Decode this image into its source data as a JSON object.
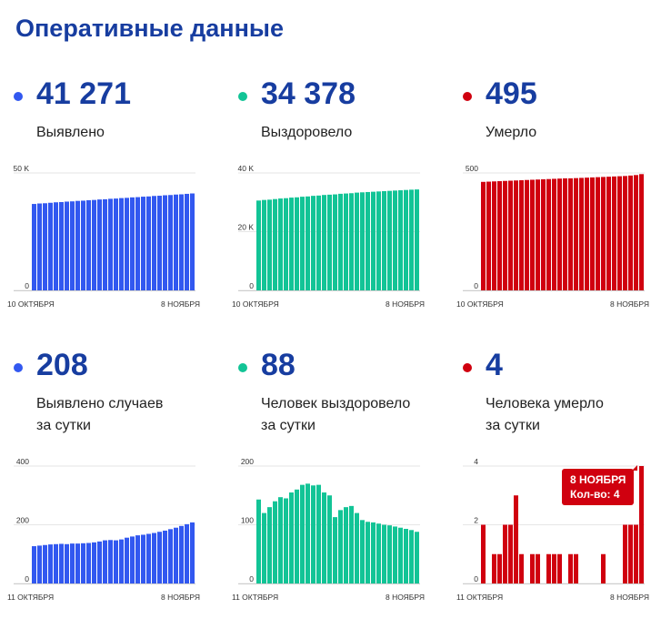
{
  "page": {
    "title": "Оперативные данные"
  },
  "panels": [
    {
      "value": "41 271",
      "label_lines": [
        "Выявлено"
      ],
      "color": "#3258f0"
    },
    {
      "value": "34 378",
      "label_lines": [
        "Выздоровело"
      ],
      "color": "#12c496"
    },
    {
      "value": "495",
      "label_lines": [
        "Умерло"
      ],
      "color": "#d0000f"
    },
    {
      "value": "208",
      "label_lines": [
        "Выявлено случаев",
        "за сутки"
      ],
      "color": "#3258f0"
    },
    {
      "value": "88",
      "label_lines": [
        "Человек выздоровело",
        "за сутки"
      ],
      "color": "#12c496"
    },
    {
      "value": "4",
      "label_lines": [
        "Человека умерло",
        "за сутки"
      ],
      "color": "#d0000f"
    }
  ],
  "chart_data": [
    {
      "type": "bar",
      "title": "Выявлено",
      "x_start_label": "10 ОКТЯБРЯ",
      "x_end_label": "8 НОЯБРЯ",
      "y_ticks": [
        {
          "value": 0,
          "label": "0"
        },
        {
          "value": 50000,
          "label": "50 K"
        }
      ],
      "ylim": [
        0,
        50000
      ],
      "values": [
        36800,
        37000,
        37100,
        37300,
        37500,
        37600,
        37800,
        37900,
        38100,
        38200,
        38400,
        38500,
        38700,
        38800,
        39000,
        39100,
        39300,
        39400,
        39600,
        39700,
        39900,
        40000,
        40200,
        40300,
        40500,
        40600,
        40800,
        40900,
        41100,
        41271
      ],
      "color": "#3258f0"
    },
    {
      "type": "bar",
      "title": "Выздоровело",
      "x_start_label": "10 ОКТЯБРЯ",
      "x_end_label": "8 НОЯБРЯ",
      "y_ticks": [
        {
          "value": 0,
          "label": "0"
        },
        {
          "value": 20000,
          "label": "20 K"
        },
        {
          "value": 40000,
          "label": "40 K"
        }
      ],
      "ylim": [
        0,
        40000
      ],
      "values": [
        30600,
        30800,
        30900,
        31100,
        31300,
        31400,
        31600,
        31700,
        31900,
        32000,
        32200,
        32300,
        32500,
        32600,
        32700,
        32900,
        33000,
        33100,
        33300,
        33400,
        33500,
        33600,
        33700,
        33800,
        33900,
        34000,
        34100,
        34200,
        34300,
        34378
      ],
      "color": "#12c496"
    },
    {
      "type": "bar",
      "title": "Умерло",
      "x_start_label": "10 ОКТЯБРЯ",
      "x_end_label": "8 НОЯБРЯ",
      "y_ticks": [
        {
          "value": 0,
          "label": "0"
        },
        {
          "value": 500,
          "label": "500"
        }
      ],
      "ylim": [
        0,
        500
      ],
      "values": [
        462,
        463,
        464,
        465,
        466,
        467,
        468,
        469,
        470,
        471,
        472,
        473,
        474,
        475,
        476,
        477,
        477,
        478,
        479,
        480,
        481,
        482,
        483,
        484,
        485,
        486,
        487,
        489,
        491,
        495
      ],
      "color": "#d0000f"
    },
    {
      "type": "bar",
      "title": "Выявлено случаев за сутки",
      "x_start_label": "11 ОКТЯБРЯ",
      "x_end_label": "8 НОЯБРЯ",
      "y_ticks": [
        {
          "value": 0,
          "label": "0"
        },
        {
          "value": 200,
          "label": "200"
        },
        {
          "value": 400,
          "label": "400"
        }
      ],
      "ylim": [
        0,
        400
      ],
      "values": [
        127,
        129,
        131,
        133,
        134,
        135,
        134,
        136,
        136,
        137,
        138,
        140,
        143,
        147,
        148,
        147,
        150,
        156,
        160,
        164,
        166,
        169,
        172,
        176,
        180,
        185,
        190,
        196,
        202,
        208
      ],
      "color": "#3258f0"
    },
    {
      "type": "bar",
      "title": "Человек выздоровело за сутки",
      "x_start_label": "11 ОКТЯБРЯ",
      "x_end_label": "8 НОЯБРЯ",
      "y_ticks": [
        {
          "value": 0,
          "label": "0"
        },
        {
          "value": 100,
          "label": "100"
        },
        {
          "value": 200,
          "label": "200"
        }
      ],
      "ylim": [
        0,
        200
      ],
      "values": [
        143,
        120,
        130,
        140,
        147,
        145,
        155,
        160,
        168,
        170,
        167,
        168,
        155,
        150,
        113,
        125,
        130,
        132,
        120,
        108,
        105,
        104,
        102,
        100,
        99,
        97,
        95,
        93,
        91,
        88
      ],
      "color": "#12c496"
    },
    {
      "type": "bar",
      "title": "Человека умерло за сутки",
      "x_start_label": "11 ОКТЯБРЯ",
      "x_end_label": "8 НОЯБРЯ",
      "y_ticks": [
        {
          "value": 0,
          "label": "0"
        },
        {
          "value": 2,
          "label": "2"
        },
        {
          "value": 4,
          "label": "4"
        }
      ],
      "ylim": [
        0,
        4
      ],
      "values": [
        2,
        0,
        1,
        1,
        2,
        2,
        3,
        1,
        0,
        1,
        1,
        0,
        1,
        1,
        1,
        0,
        1,
        1,
        0,
        0,
        0,
        0,
        1,
        0,
        0,
        0,
        2,
        2,
        2,
        4
      ],
      "color": "#d0000f",
      "tooltip": {
        "date": "8 НОЯБРЯ",
        "text": "Кол-во: 4"
      }
    }
  ]
}
